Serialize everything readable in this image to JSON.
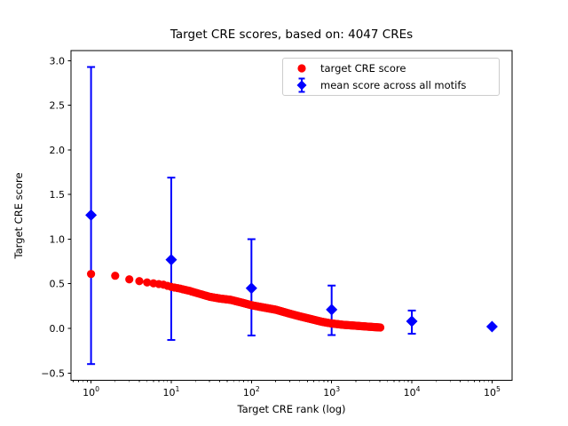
{
  "chart_data": {
    "type": "scatter",
    "title": "Target CRE scores, based on: 4047 CREs",
    "xlabel": "Target CRE rank (log)",
    "ylabel": "Target CRE score",
    "xscale": "log",
    "xlim_log10": [
      -0.25,
      5.25
    ],
    "ylim": [
      -0.582,
      3.114
    ],
    "xticks": [
      1,
      10,
      100,
      1000,
      10000,
      100000
    ],
    "yticks": [
      -0.5,
      0.0,
      0.5,
      1.0,
      1.5,
      2.0,
      2.5,
      3.0
    ],
    "grid": false,
    "legend": {
      "position": "upper right"
    },
    "series": [
      {
        "name": "target CRE score",
        "marker": "circle",
        "color": "#ff0000",
        "n_points": 4047,
        "anchor_rank": [
          1,
          2,
          3,
          4,
          5,
          6,
          8,
          10,
          13,
          17,
          22,
          30,
          40,
          55,
          75,
          100,
          140,
          200,
          300,
          400,
          550,
          750,
          1000,
          1400,
          2000,
          2800,
          4047
        ],
        "anchor_score": [
          0.61,
          0.59,
          0.55,
          0.53,
          0.515,
          0.505,
          0.49,
          0.465,
          0.445,
          0.42,
          0.39,
          0.355,
          0.335,
          0.32,
          0.29,
          0.26,
          0.235,
          0.21,
          0.165,
          0.135,
          0.105,
          0.075,
          0.055,
          0.04,
          0.03,
          0.02,
          0.01
        ]
      },
      {
        "name": "mean score across all motifs",
        "marker": "diamond",
        "color": "#0000ff",
        "x": [
          1,
          10,
          100,
          1000,
          10000,
          100000
        ],
        "y": [
          1.27,
          0.77,
          0.45,
          0.21,
          0.08,
          0.02
        ],
        "err_top": [
          2.93,
          1.69,
          1.0,
          0.48,
          0.2,
          0.03
        ],
        "err_bottom": [
          -0.4,
          -0.13,
          -0.08,
          -0.075,
          -0.06,
          0.01
        ]
      }
    ]
  }
}
